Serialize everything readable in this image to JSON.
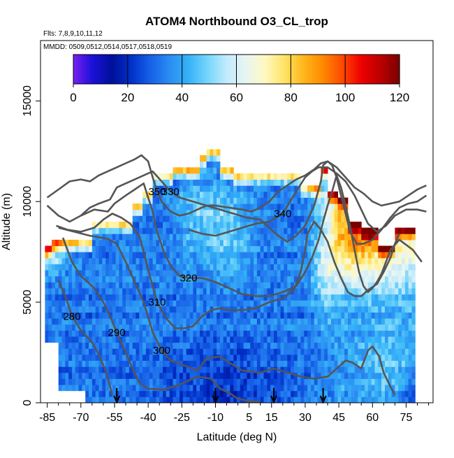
{
  "chart_data": {
    "type": "heatmap",
    "title": "ATOM4 Northbound O3_CL_trop",
    "subtitle_flights": "Flts: 7,8,9,10,11,12",
    "subtitle_dates": "MMDD: 0509,0512,0514,0517,0518,0519",
    "xlabel": "Latitude (deg N)",
    "ylabel": "Altitude (m)",
    "xlim": [
      -88,
      87
    ],
    "ylim": [
      0,
      18000
    ],
    "x_ticks": [
      -85,
      -70,
      -55,
      -40,
      -25,
      -10,
      5,
      15,
      30,
      45,
      60,
      75
    ],
    "x_minor_ticks": [
      -80,
      -75,
      -65,
      -60,
      -50,
      -45,
      -35,
      -30,
      -20,
      -15,
      -5,
      0,
      10,
      20,
      25,
      35,
      40,
      50,
      55,
      65,
      70,
      80,
      85
    ],
    "y_ticks": [
      0,
      5000,
      10000,
      15000
    ],
    "colorbar": {
      "range": [
        0,
        120
      ],
      "ticks": [
        0,
        20,
        40,
        60,
        80,
        100,
        120
      ],
      "colors": [
        "#7a20f0",
        "#1a10d8",
        "#00109a",
        "#0030c8",
        "#1660e8",
        "#2a8cf2",
        "#35b2f8",
        "#75d6fb",
        "#c4eafd",
        "#e8f6f2",
        "#fff8c0",
        "#ffe466",
        "#ffb61a",
        "#ff8a00",
        "#ff4a00",
        "#ee0000",
        "#bb0000",
        "#7a0000"
      ]
    },
    "contours": [
      {
        "label": "280",
        "points": [
          [
            -80,
            6100
          ],
          [
            -76,
            5000
          ],
          [
            -74,
            4300
          ],
          [
            -70,
            3600
          ],
          [
            -65,
            3000
          ],
          [
            -62,
            2400
          ],
          [
            -59,
            1600
          ],
          [
            -56,
            400
          ]
        ]
      },
      {
        "label": "290",
        "points": [
          [
            -78,
            8200
          ],
          [
            -74,
            7000
          ],
          [
            -70,
            6300
          ],
          [
            -64,
            5700
          ],
          [
            -60,
            5000
          ],
          [
            -57,
            4300
          ],
          [
            -54,
            3500
          ],
          [
            -50,
            2500
          ],
          [
            -47,
            1700
          ],
          [
            -44,
            1000
          ],
          [
            -40,
            700
          ],
          [
            -33,
            650
          ],
          [
            -26,
            900
          ],
          [
            -18,
            1300
          ],
          [
            -12,
            1200
          ],
          [
            -8,
            700
          ],
          [
            -4,
            500
          ],
          [
            0,
            200
          ],
          [
            5,
            80
          ],
          [
            10,
            40
          ]
        ]
      },
      {
        "label": "300",
        "points": [
          [
            -80,
            8700
          ],
          [
            -73,
            8500
          ],
          [
            -66,
            8300
          ],
          [
            -58,
            8150
          ],
          [
            -54,
            7900
          ],
          [
            -50,
            7000
          ],
          [
            -46,
            6000
          ],
          [
            -42,
            5000
          ],
          [
            -38,
            3500
          ],
          [
            -34,
            2600
          ],
          [
            -30,
            2100
          ],
          [
            -25,
            1900
          ],
          [
            -18,
            1600
          ],
          [
            -14,
            2200
          ],
          [
            -8,
            2300
          ],
          [
            -4,
            2000
          ],
          [
            2,
            1600
          ],
          [
            10,
            1500
          ],
          [
            16,
            1700
          ],
          [
            22,
            1500
          ],
          [
            28,
            1300
          ],
          [
            34,
            1200
          ],
          [
            40,
            1300
          ],
          [
            44,
            1700
          ],
          [
            48,
            2100
          ],
          [
            51,
            2000
          ],
          [
            55,
            1700
          ],
          [
            58,
            2600
          ],
          [
            60,
            2800
          ],
          [
            63,
            2300
          ],
          [
            65,
            1500
          ],
          [
            68,
            800
          ],
          [
            70,
            400
          ]
        ]
      },
      {
        "label": "310",
        "points": [
          [
            -81,
            8800
          ],
          [
            -76,
            8600
          ],
          [
            -70,
            8500
          ],
          [
            -64,
            8700
          ],
          [
            -60,
            9100
          ],
          [
            -56,
            9400
          ],
          [
            -52,
            9200
          ],
          [
            -48,
            8900
          ],
          [
            -44,
            8300
          ],
          [
            -42,
            7500
          ],
          [
            -40,
            6600
          ],
          [
            -38,
            5800
          ],
          [
            -36,
            5000
          ],
          [
            -32,
            4200
          ],
          [
            -28,
            3700
          ],
          [
            -24,
            3700
          ],
          [
            -20,
            3800
          ],
          [
            -16,
            4300
          ],
          [
            -12,
            4600
          ],
          [
            -8,
            4700
          ],
          [
            -4,
            4600
          ],
          [
            2,
            4600
          ],
          [
            8,
            4700
          ],
          [
            14,
            5000
          ],
          [
            20,
            5200
          ],
          [
            25,
            5600
          ],
          [
            28,
            6500
          ],
          [
            30,
            7600
          ],
          [
            31,
            8400
          ],
          [
            34,
            9000
          ],
          [
            37,
            8600
          ],
          [
            40,
            8000
          ],
          [
            43,
            7000
          ],
          [
            46,
            6200
          ],
          [
            49,
            5500
          ],
          [
            52,
            5300
          ],
          [
            55,
            5300
          ],
          [
            58,
            5600
          ],
          [
            62,
            5900
          ],
          [
            65,
            6500
          ],
          [
            68,
            7200
          ],
          [
            70,
            7900
          ],
          [
            72,
            8400
          ]
        ]
      },
      {
        "label": "320",
        "points": [
          [
            -70,
            9300
          ],
          [
            -64,
            9600
          ],
          [
            -58,
            9500
          ],
          [
            -55,
            9900
          ],
          [
            -50,
            10300
          ],
          [
            -46,
            10600
          ],
          [
            -42,
            10900
          ],
          [
            -40,
            10200
          ],
          [
            -38,
            9500
          ],
          [
            -36,
            8500
          ],
          [
            -33,
            7500
          ],
          [
            -30,
            6800
          ],
          [
            -26,
            6300
          ],
          [
            -22,
            6200
          ],
          [
            -16,
            6200
          ],
          [
            -10,
            6000
          ],
          [
            -4,
            5700
          ],
          [
            2,
            5400
          ],
          [
            8,
            5300
          ],
          [
            14,
            5300
          ],
          [
            20,
            5500
          ],
          [
            26,
            5800
          ],
          [
            30,
            6500
          ],
          [
            33,
            7200
          ],
          [
            36,
            8100
          ],
          [
            38,
            9000
          ],
          [
            40,
            9800
          ],
          [
            42,
            10500
          ],
          [
            44,
            11300
          ],
          [
            46,
            10700
          ],
          [
            48,
            9800
          ],
          [
            50,
            8800
          ],
          [
            52,
            7600
          ],
          [
            54,
            6500
          ],
          [
            56,
            5800
          ],
          [
            58,
            5500
          ],
          [
            60,
            5700
          ],
          [
            62,
            6000
          ],
          [
            64,
            6400
          ],
          [
            66,
            7000
          ],
          [
            68,
            7600
          ],
          [
            72,
            8100
          ],
          [
            78,
            7600
          ],
          [
            82,
            7000
          ]
        ]
      },
      {
        "label": "330",
        "points": [
          [
            -85,
            9800
          ],
          [
            -80,
            9300
          ],
          [
            -75,
            9000
          ],
          [
            -70,
            9300
          ],
          [
            -66,
            9700
          ],
          [
            -62,
            9900
          ],
          [
            -57,
            10100
          ],
          [
            -54,
            10700
          ],
          [
            -50,
            10900
          ],
          [
            -46,
            11100
          ],
          [
            -42,
            11300
          ],
          [
            -38,
            11500
          ],
          [
            -34,
            11000
          ],
          [
            -30,
            10500
          ],
          [
            -26,
            10200
          ],
          [
            -20,
            10000
          ],
          [
            -14,
            9800
          ],
          [
            -8,
            9600
          ],
          [
            -2,
            9400
          ],
          [
            4,
            9200
          ],
          [
            10,
            9100
          ],
          [
            14,
            8700
          ],
          [
            18,
            8300
          ],
          [
            22,
            8000
          ],
          [
            26,
            8300
          ],
          [
            30,
            8800
          ],
          [
            34,
            9800
          ],
          [
            37,
            11000
          ],
          [
            38,
            11800
          ],
          [
            40,
            12000
          ],
          [
            42,
            11800
          ],
          [
            44,
            11200
          ],
          [
            46,
            10300
          ],
          [
            48,
            9400
          ],
          [
            50,
            8500
          ],
          [
            53,
            7900
          ],
          [
            56,
            7900
          ],
          [
            60,
            8100
          ],
          [
            64,
            8600
          ],
          [
            68,
            9200
          ],
          [
            72,
            9700
          ],
          [
            76,
            9900
          ],
          [
            80,
            10000
          ],
          [
            84,
            10300
          ]
        ]
      },
      {
        "label": "340",
        "points": [
          [
            -22,
            8600
          ],
          [
            -16,
            8400
          ],
          [
            -10,
            8300
          ],
          [
            -4,
            8500
          ],
          [
            2,
            8700
          ],
          [
            8,
            8900
          ],
          [
            14,
            9000
          ],
          [
            20,
            9400
          ],
          [
            26,
            10500
          ],
          [
            30,
            11200
          ],
          [
            33,
            11500
          ],
          [
            36,
            11700
          ],
          [
            40,
            11700
          ],
          [
            44,
            11400
          ],
          [
            48,
            11000
          ],
          [
            52,
            10300
          ],
          [
            55,
            9600
          ],
          [
            58,
            8900
          ],
          [
            62,
            8500
          ],
          [
            66,
            8800
          ],
          [
            70,
            9300
          ],
          [
            75,
            9600
          ],
          [
            80,
            9600
          ],
          [
            84,
            9500
          ]
        ]
      },
      {
        "label": "350",
        "points": [
          [
            -85,
            10200
          ],
          [
            -80,
            10600
          ],
          [
            -75,
            11000
          ],
          [
            -70,
            11100
          ],
          [
            -66,
            11000
          ],
          [
            -62,
            11300
          ],
          [
            -58,
            11500
          ],
          [
            -54,
            11700
          ],
          [
            -50,
            11900
          ],
          [
            -46,
            12100
          ],
          [
            -43,
            12300
          ],
          [
            -40,
            12000
          ],
          [
            -38,
            11200
          ],
          [
            -36,
            10500
          ],
          [
            -34,
            10000
          ],
          [
            -30,
            9500
          ],
          [
            -26,
            9300
          ],
          [
            -22,
            9400
          ],
          [
            -18,
            9600
          ],
          [
            -14,
            9800
          ],
          [
            -10,
            9800
          ],
          [
            -4,
            9700
          ],
          [
            2,
            9600
          ],
          [
            6,
            9500
          ],
          [
            10,
            9700
          ],
          [
            14,
            10000
          ],
          [
            18,
            10500
          ],
          [
            22,
            10800
          ],
          [
            26,
            11100
          ],
          [
            30,
            11300
          ],
          [
            34,
            11600
          ],
          [
            37,
            11900
          ],
          [
            40,
            12000
          ],
          [
            44,
            11700
          ],
          [
            48,
            11200
          ],
          [
            52,
            10700
          ],
          [
            56,
            10400
          ],
          [
            60,
            10000
          ],
          [
            64,
            9800
          ],
          [
            68,
            9900
          ],
          [
            72,
            10000
          ],
          [
            76,
            10300
          ],
          [
            80,
            10600
          ],
          [
            84,
            10800
          ]
        ]
      }
    ],
    "arrows": [
      -54,
      -10,
      16,
      38
    ],
    "legend": "colorbar at top inside plot",
    "grid": false
  }
}
